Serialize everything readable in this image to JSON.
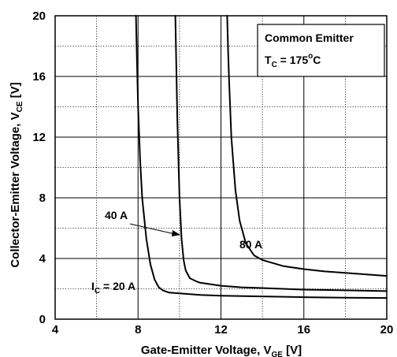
{
  "chart_data": {
    "type": "line",
    "xlabel": "Gate-Emitter Voltage, V",
    "xlabel_sub": "GE",
    "xlabel_unit": " [V]",
    "ylabel": "Collector-Emitter Voltage, V",
    "ylabel_sub": "CE",
    "ylabel_unit": " [V]",
    "xlim": [
      4,
      20
    ],
    "ylim": [
      0,
      20
    ],
    "xticks": [
      4,
      8,
      12,
      16,
      20
    ],
    "yticks": [
      0,
      4,
      8,
      12,
      16,
      20
    ],
    "grid": true,
    "legend_box": {
      "line1": "Common Emitter",
      "line2_prefix": "T",
      "line2_sub": "C",
      "line2_mid": " = 175",
      "line2_sup": "o",
      "line2_suffix": "C",
      "placement": "top-right"
    },
    "series": [
      {
        "label_prefix": "I",
        "label_sub": "C",
        "label_suffix": " = 20 A",
        "x": [
          7.9,
          7.95,
          8.0,
          8.1,
          8.2,
          8.4,
          8.6,
          8.8,
          9.0,
          9.2,
          9.5,
          10.0,
          11.0,
          12.0,
          14.0,
          16.0,
          18.0,
          20.0
        ],
        "y": [
          20.0,
          17.0,
          14.0,
          10.5,
          8.0,
          5.3,
          3.6,
          2.6,
          2.1,
          1.9,
          1.75,
          1.7,
          1.6,
          1.55,
          1.5,
          1.45,
          1.42,
          1.4
        ]
      },
      {
        "label": "40 A",
        "x": [
          9.8,
          9.85,
          9.9,
          10.0,
          10.1,
          10.2,
          10.3,
          10.5,
          10.8,
          11.0,
          12.0,
          13.0,
          14.0,
          16.0,
          18.0,
          20.0
        ],
        "y": [
          20.0,
          16.5,
          13.0,
          8.0,
          5.3,
          3.9,
          3.2,
          2.7,
          2.5,
          2.4,
          2.2,
          2.1,
          2.05,
          1.95,
          1.9,
          1.85
        ]
      },
      {
        "label": "80 A",
        "x": [
          12.3,
          12.35,
          12.4,
          12.5,
          12.7,
          12.9,
          13.2,
          13.6,
          14.0,
          15.0,
          16.0,
          17.0,
          18.0,
          20.0
        ],
        "y": [
          20.0,
          17.5,
          15.5,
          12.0,
          8.5,
          6.5,
          5.0,
          4.2,
          3.9,
          3.5,
          3.3,
          3.15,
          3.05,
          2.85
        ]
      }
    ]
  }
}
